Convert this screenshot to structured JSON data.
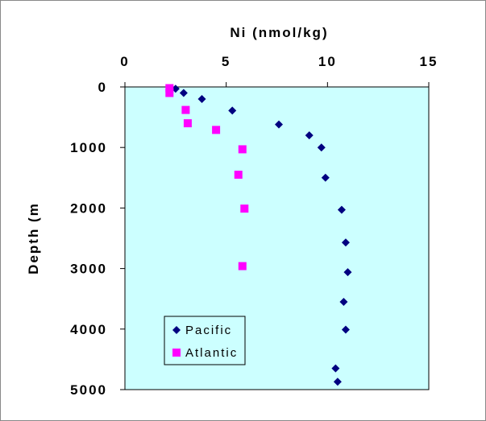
{
  "chart_data": {
    "type": "scatter",
    "title": "",
    "xlabel": "Ni (nmol/kg)",
    "ylabel": "Depth (m",
    "xlim": [
      0,
      15
    ],
    "ylim": [
      0,
      5000
    ],
    "y_inverted": true,
    "x_axis_position": "top",
    "x_ticks": [
      "0",
      "5",
      "10",
      "15"
    ],
    "y_ticks": [
      "0",
      "1000",
      "2000",
      "3000",
      "4000",
      "5000"
    ],
    "grid": false,
    "legend_position": "bottom-left",
    "plot_background": "#ccffff",
    "series": [
      {
        "name": "Pacific",
        "marker": "diamond",
        "color": "#000080",
        "points": [
          {
            "x": 2.5,
            "y": 30
          },
          {
            "x": 2.9,
            "y": 100
          },
          {
            "x": 3.8,
            "y": 200
          },
          {
            "x": 5.3,
            "y": 390
          },
          {
            "x": 7.6,
            "y": 620
          },
          {
            "x": 9.1,
            "y": 800
          },
          {
            "x": 9.7,
            "y": 1000
          },
          {
            "x": 9.9,
            "y": 1500
          },
          {
            "x": 10.7,
            "y": 2030
          },
          {
            "x": 10.9,
            "y": 2570
          },
          {
            "x": 11.0,
            "y": 3060
          },
          {
            "x": 10.8,
            "y": 3550
          },
          {
            "x": 10.9,
            "y": 4010
          },
          {
            "x": 10.4,
            "y": 4650
          },
          {
            "x": 10.5,
            "y": 4870
          }
        ]
      },
      {
        "name": "Atlantic",
        "marker": "square",
        "color": "#ff00ff",
        "points": [
          {
            "x": 2.2,
            "y": 20
          },
          {
            "x": 2.2,
            "y": 100
          },
          {
            "x": 3.0,
            "y": 380
          },
          {
            "x": 3.1,
            "y": 600
          },
          {
            "x": 4.5,
            "y": 710
          },
          {
            "x": 5.8,
            "y": 1030
          },
          {
            "x": 5.6,
            "y": 1450
          },
          {
            "x": 5.9,
            "y": 2010
          },
          {
            "x": 5.8,
            "y": 2960
          }
        ]
      }
    ]
  }
}
